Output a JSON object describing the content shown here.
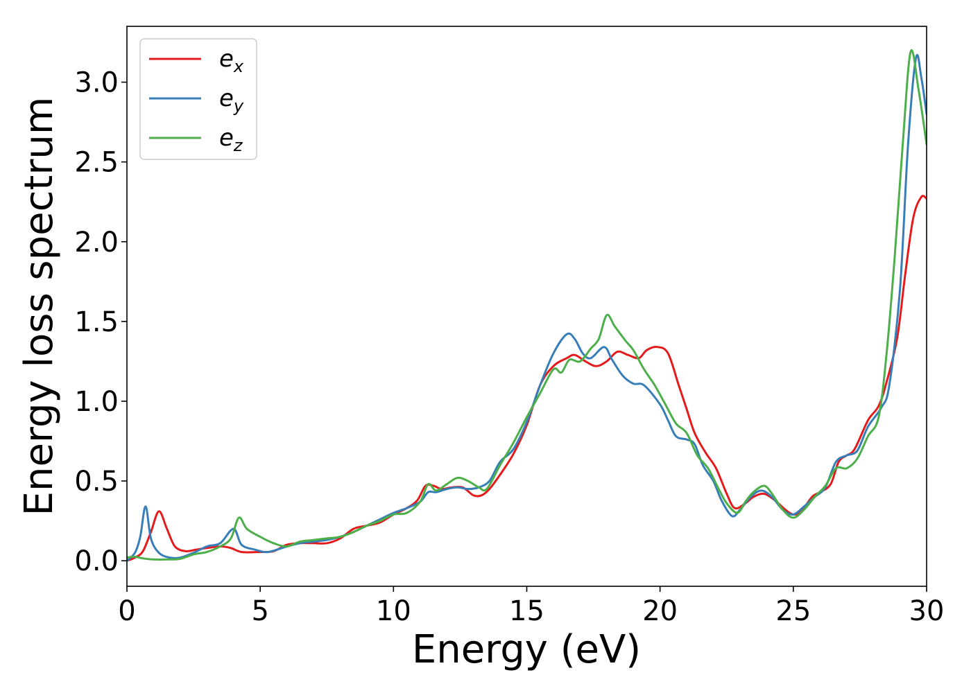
{
  "chart_data": {
    "type": "line",
    "xlabel": "Energy (eV)",
    "ylabel": "Energy loss spectrum",
    "xlim": [
      0,
      30
    ],
    "ylim": [
      -0.16,
      3.35
    ],
    "x_ticks": [
      0,
      5,
      10,
      15,
      20,
      25,
      30
    ],
    "y_ticks": [
      0.0,
      0.5,
      1.0,
      1.5,
      2.0,
      2.5,
      3.0
    ],
    "x_tick_labels": [
      "0",
      "5",
      "10",
      "15",
      "20",
      "25",
      "30"
    ],
    "y_tick_labels": [
      "0.0",
      "0.5",
      "1.0",
      "1.5",
      "2.0",
      "2.5",
      "3.0"
    ],
    "grid": false,
    "legend_position": "top-left",
    "series": [
      {
        "name": "e",
        "subscript": "x",
        "color": "#e41a1c",
        "points": [
          [
            0,
            0.0
          ],
          [
            0.3,
            0.02
          ],
          [
            0.6,
            0.06
          ],
          [
            0.9,
            0.18
          ],
          [
            1.2,
            0.31
          ],
          [
            1.5,
            0.2
          ],
          [
            1.8,
            0.09
          ],
          [
            2.2,
            0.06
          ],
          [
            2.6,
            0.07
          ],
          [
            3.0,
            0.08
          ],
          [
            3.5,
            0.09
          ],
          [
            3.9,
            0.08
          ],
          [
            4.3,
            0.055
          ],
          [
            5.0,
            0.055
          ],
          [
            5.5,
            0.06
          ],
          [
            6.0,
            0.1
          ],
          [
            6.5,
            0.11
          ],
          [
            7.0,
            0.11
          ],
          [
            7.5,
            0.11
          ],
          [
            8.0,
            0.14
          ],
          [
            8.5,
            0.2
          ],
          [
            9.0,
            0.22
          ],
          [
            9.5,
            0.24
          ],
          [
            10.0,
            0.29
          ],
          [
            10.5,
            0.33
          ],
          [
            10.9,
            0.38
          ],
          [
            11.2,
            0.47
          ],
          [
            11.5,
            0.47
          ],
          [
            11.8,
            0.45
          ],
          [
            12.2,
            0.46
          ],
          [
            12.6,
            0.46
          ],
          [
            13.0,
            0.41
          ],
          [
            13.3,
            0.41
          ],
          [
            13.6,
            0.45
          ],
          [
            14.0,
            0.54
          ],
          [
            14.5,
            0.67
          ],
          [
            15.0,
            0.85
          ],
          [
            15.5,
            1.1
          ],
          [
            16.0,
            1.22
          ],
          [
            16.5,
            1.27
          ],
          [
            16.8,
            1.29
          ],
          [
            17.2,
            1.25
          ],
          [
            17.6,
            1.22
          ],
          [
            18.0,
            1.25
          ],
          [
            18.4,
            1.31
          ],
          [
            18.8,
            1.29
          ],
          [
            19.2,
            1.27
          ],
          [
            19.5,
            1.32
          ],
          [
            19.9,
            1.34
          ],
          [
            20.3,
            1.3
          ],
          [
            20.7,
            1.1
          ],
          [
            21.0,
            0.95
          ],
          [
            21.3,
            0.8
          ],
          [
            21.7,
            0.68
          ],
          [
            22.1,
            0.58
          ],
          [
            22.5,
            0.42
          ],
          [
            22.8,
            0.33
          ],
          [
            23.2,
            0.36
          ],
          [
            23.5,
            0.4
          ],
          [
            23.9,
            0.42
          ],
          [
            24.3,
            0.38
          ],
          [
            24.7,
            0.32
          ],
          [
            25.0,
            0.29
          ],
          [
            25.3,
            0.31
          ],
          [
            25.7,
            0.4
          ],
          [
            26.0,
            0.43
          ],
          [
            26.4,
            0.48
          ],
          [
            26.7,
            0.62
          ],
          [
            27.0,
            0.66
          ],
          [
            27.3,
            0.7
          ],
          [
            27.8,
            0.88
          ],
          [
            28.2,
            0.97
          ],
          [
            28.5,
            1.12
          ],
          [
            28.9,
            1.4
          ],
          [
            29.2,
            1.8
          ],
          [
            29.5,
            2.15
          ],
          [
            29.8,
            2.28
          ],
          [
            30.0,
            2.27
          ]
        ]
      },
      {
        "name": "e",
        "subscript": "y",
        "color": "#377eb8",
        "points": [
          [
            0,
            0.0
          ],
          [
            0.3,
            0.05
          ],
          [
            0.5,
            0.15
          ],
          [
            0.7,
            0.34
          ],
          [
            0.9,
            0.14
          ],
          [
            1.2,
            0.05
          ],
          [
            1.6,
            0.02
          ],
          [
            2.0,
            0.02
          ],
          [
            2.5,
            0.05
          ],
          [
            3.0,
            0.09
          ],
          [
            3.5,
            0.11
          ],
          [
            4.0,
            0.2
          ],
          [
            4.3,
            0.1
          ],
          [
            4.8,
            0.07
          ],
          [
            5.3,
            0.055
          ],
          [
            6.0,
            0.09
          ],
          [
            6.5,
            0.11
          ],
          [
            7.0,
            0.12
          ],
          [
            7.5,
            0.13
          ],
          [
            8.0,
            0.15
          ],
          [
            8.5,
            0.18
          ],
          [
            9.0,
            0.22
          ],
          [
            9.5,
            0.26
          ],
          [
            10.0,
            0.3
          ],
          [
            10.5,
            0.33
          ],
          [
            11.0,
            0.37
          ],
          [
            11.3,
            0.43
          ],
          [
            11.6,
            0.43
          ],
          [
            12.0,
            0.45
          ],
          [
            12.4,
            0.46
          ],
          [
            12.8,
            0.45
          ],
          [
            13.2,
            0.46
          ],
          [
            13.6,
            0.5
          ],
          [
            14.0,
            0.62
          ],
          [
            14.5,
            0.7
          ],
          [
            15.0,
            0.87
          ],
          [
            15.5,
            1.1
          ],
          [
            16.0,
            1.3
          ],
          [
            16.5,
            1.42
          ],
          [
            16.8,
            1.39
          ],
          [
            17.1,
            1.3
          ],
          [
            17.4,
            1.27
          ],
          [
            17.9,
            1.34
          ],
          [
            18.2,
            1.26
          ],
          [
            18.6,
            1.16
          ],
          [
            19.0,
            1.11
          ],
          [
            19.4,
            1.1
          ],
          [
            20.0,
            0.98
          ],
          [
            20.3,
            0.88
          ],
          [
            20.6,
            0.78
          ],
          [
            21.0,
            0.76
          ],
          [
            21.3,
            0.73
          ],
          [
            21.6,
            0.6
          ],
          [
            22.0,
            0.5
          ],
          [
            22.3,
            0.38
          ],
          [
            22.7,
            0.28
          ],
          [
            23.0,
            0.32
          ],
          [
            23.4,
            0.4
          ],
          [
            23.8,
            0.44
          ],
          [
            24.2,
            0.4
          ],
          [
            24.6,
            0.32
          ],
          [
            25.0,
            0.29
          ],
          [
            25.4,
            0.34
          ],
          [
            25.8,
            0.4
          ],
          [
            26.2,
            0.46
          ],
          [
            26.6,
            0.62
          ],
          [
            27.0,
            0.66
          ],
          [
            27.4,
            0.69
          ],
          [
            27.8,
            0.84
          ],
          [
            28.3,
            0.96
          ],
          [
            28.6,
            1.1
          ],
          [
            29.0,
            1.7
          ],
          [
            29.3,
            2.6
          ],
          [
            29.6,
            3.15
          ],
          [
            29.8,
            3.03
          ],
          [
            30.0,
            2.8
          ]
        ]
      },
      {
        "name": "e",
        "subscript": "z",
        "color": "#4daf4a",
        "points": [
          [
            0,
            0.02
          ],
          [
            0.3,
            0.025
          ],
          [
            0.6,
            0.015
          ],
          [
            1.0,
            0.008
          ],
          [
            1.5,
            0.008
          ],
          [
            2.0,
            0.012
          ],
          [
            2.5,
            0.04
          ],
          [
            3.0,
            0.055
          ],
          [
            3.5,
            0.09
          ],
          [
            3.9,
            0.14
          ],
          [
            4.2,
            0.27
          ],
          [
            4.5,
            0.2
          ],
          [
            5.0,
            0.15
          ],
          [
            5.5,
            0.11
          ],
          [
            6.0,
            0.09
          ],
          [
            6.5,
            0.12
          ],
          [
            7.0,
            0.13
          ],
          [
            7.5,
            0.14
          ],
          [
            8.0,
            0.15
          ],
          [
            8.5,
            0.18
          ],
          [
            9.0,
            0.22
          ],
          [
            9.5,
            0.25
          ],
          [
            10.0,
            0.29
          ],
          [
            10.5,
            0.3
          ],
          [
            11.0,
            0.37
          ],
          [
            11.3,
            0.48
          ],
          [
            11.6,
            0.44
          ],
          [
            12.0,
            0.48
          ],
          [
            12.4,
            0.52
          ],
          [
            12.8,
            0.5
          ],
          [
            13.2,
            0.46
          ],
          [
            13.5,
            0.45
          ],
          [
            14.0,
            0.6
          ],
          [
            14.5,
            0.74
          ],
          [
            15.0,
            0.9
          ],
          [
            15.5,
            1.05
          ],
          [
            16.0,
            1.2
          ],
          [
            16.3,
            1.18
          ],
          [
            16.6,
            1.26
          ],
          [
            17.0,
            1.25
          ],
          [
            17.4,
            1.33
          ],
          [
            17.7,
            1.39
          ],
          [
            18.0,
            1.54
          ],
          [
            18.3,
            1.47
          ],
          [
            18.7,
            1.38
          ],
          [
            19.0,
            1.32
          ],
          [
            19.4,
            1.2
          ],
          [
            19.8,
            1.1
          ],
          [
            20.2,
            0.98
          ],
          [
            20.6,
            0.86
          ],
          [
            21.0,
            0.8
          ],
          [
            21.4,
            0.66
          ],
          [
            21.8,
            0.58
          ],
          [
            22.2,
            0.45
          ],
          [
            22.5,
            0.36
          ],
          [
            22.9,
            0.3
          ],
          [
            23.2,
            0.37
          ],
          [
            23.5,
            0.43
          ],
          [
            23.9,
            0.47
          ],
          [
            24.2,
            0.42
          ],
          [
            24.6,
            0.32
          ],
          [
            25.0,
            0.27
          ],
          [
            25.4,
            0.32
          ],
          [
            25.8,
            0.4
          ],
          [
            26.2,
            0.47
          ],
          [
            26.6,
            0.58
          ],
          [
            27.0,
            0.58
          ],
          [
            27.4,
            0.64
          ],
          [
            27.8,
            0.78
          ],
          [
            28.2,
            0.9
          ],
          [
            28.5,
            1.3
          ],
          [
            28.8,
            1.9
          ],
          [
            29.1,
            2.6
          ],
          [
            29.4,
            3.19
          ],
          [
            29.7,
            2.95
          ],
          [
            30.0,
            2.61
          ]
        ]
      }
    ]
  }
}
